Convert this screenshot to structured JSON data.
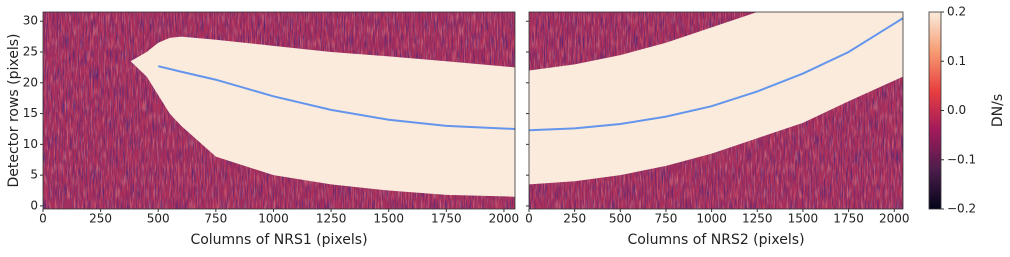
{
  "chart_data": [
    {
      "type": "heatmap",
      "x_label": "Columns of NRS1 (pixels)",
      "y_label": "Detector rows (pixels)",
      "xlim": [
        0,
        2048
      ],
      "ylim": [
        -0.5,
        31.5
      ],
      "xticks": [
        0,
        250,
        500,
        750,
        1000,
        1250,
        1500,
        1750,
        2000
      ],
      "yticks": [
        0,
        5,
        10,
        15,
        20,
        25,
        30
      ],
      "background_color": "#a92e5a",
      "band_color": "#faebdd",
      "trace_color": "#6495ed",
      "band_x": [
        380,
        450,
        500,
        550,
        600,
        750,
        1000,
        1250,
        1500,
        1750,
        2048
      ],
      "band_top": [
        23.5,
        25,
        26.5,
        27.3,
        27.5,
        27,
        26,
        25,
        24.3,
        23.5,
        22.5
      ],
      "band_bottom": [
        23.5,
        21,
        18,
        15,
        13,
        8,
        5,
        3.5,
        2.5,
        1.8,
        1.5
      ],
      "trace_x": [
        500,
        600,
        750,
        1000,
        1250,
        1500,
        1750,
        2048
      ],
      "trace_y": [
        22.7,
        21.8,
        20.5,
        17.8,
        15.6,
        14,
        13,
        12.5
      ]
    },
    {
      "type": "heatmap",
      "x_label": "Columns of NRS2 (pixels)",
      "xlim": [
        0,
        2048
      ],
      "ylim": [
        -0.5,
        31.5
      ],
      "xticks": [
        0,
        250,
        500,
        750,
        1000,
        1250,
        1500,
        1750,
        2000
      ],
      "yticks": [
        0,
        5,
        10,
        15,
        20,
        25,
        30
      ],
      "background_color": "#a92e5a",
      "band_color": "#faebdd",
      "trace_color": "#6495ed",
      "band_x": [
        0,
        250,
        500,
        750,
        1000,
        1250,
        1500,
        1750,
        2048
      ],
      "band_top": [
        22,
        23,
        24.5,
        26.5,
        29,
        31.5,
        31.5,
        31.5,
        31.5
      ],
      "band_bottom": [
        3.5,
        4,
        5,
        6.5,
        8.5,
        11,
        13.5,
        17,
        21
      ],
      "trace_x": [
        0,
        250,
        500,
        750,
        1000,
        1250,
        1500,
        1750,
        2048
      ],
      "trace_y": [
        12.3,
        12.6,
        13.3,
        14.5,
        16.2,
        18.6,
        21.5,
        25,
        30.5
      ]
    },
    {
      "type": "colorbar",
      "label": "DN/s",
      "ylim": [
        -0.2,
        0.2
      ],
      "yticks": [
        {
          "value": -0.2,
          "label": "−0.2"
        },
        {
          "value": -0.1,
          "label": "−0.1"
        },
        {
          "value": 0,
          "label": "0.0"
        },
        0.1,
        0.2
      ],
      "colors": [
        "#03051a",
        "#4c1d4b",
        "#a11a5b",
        "#e83f3f",
        "#f69c73",
        "#faebdd"
      ]
    }
  ]
}
